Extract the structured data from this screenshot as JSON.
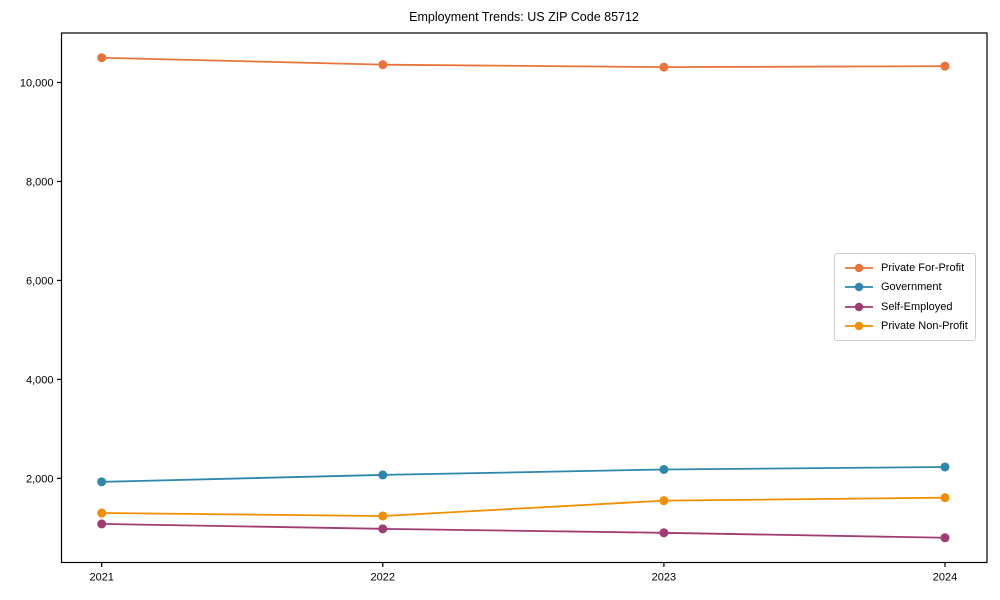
{
  "chart_data": {
    "type": "line",
    "title": "Employment Trends: US ZIP Code 85712",
    "categories": [
      "2021",
      "2022",
      "2023",
      "2024"
    ],
    "series": [
      {
        "name": "Private For-Profit",
        "color": "#E8743B",
        "values": [
          10500,
          10360,
          10310,
          10330
        ]
      },
      {
        "name": "Government",
        "color": "#2E86AB",
        "values": [
          1930,
          2070,
          2180,
          2230
        ]
      },
      {
        "name": "Self-Employed",
        "color": "#A23B72",
        "values": [
          1080,
          980,
          900,
          800
        ]
      },
      {
        "name": "Private Non-Profit",
        "color": "#F18F01",
        "values": [
          1300,
          1240,
          1550,
          1610
        ]
      }
    ],
    "yticks": [
      2000,
      4000,
      6000,
      8000,
      10000
    ],
    "ytick_labels": [
      "2,000",
      "4,000",
      "6,000",
      "8,000",
      "10,000"
    ],
    "ylim": [
      300,
      11000
    ],
    "xlabel": "",
    "ylabel": "",
    "grid": false,
    "legend_position": "center-right",
    "marker": "circle",
    "axis_color": "#000000",
    "background_color": "#ffffff"
  }
}
